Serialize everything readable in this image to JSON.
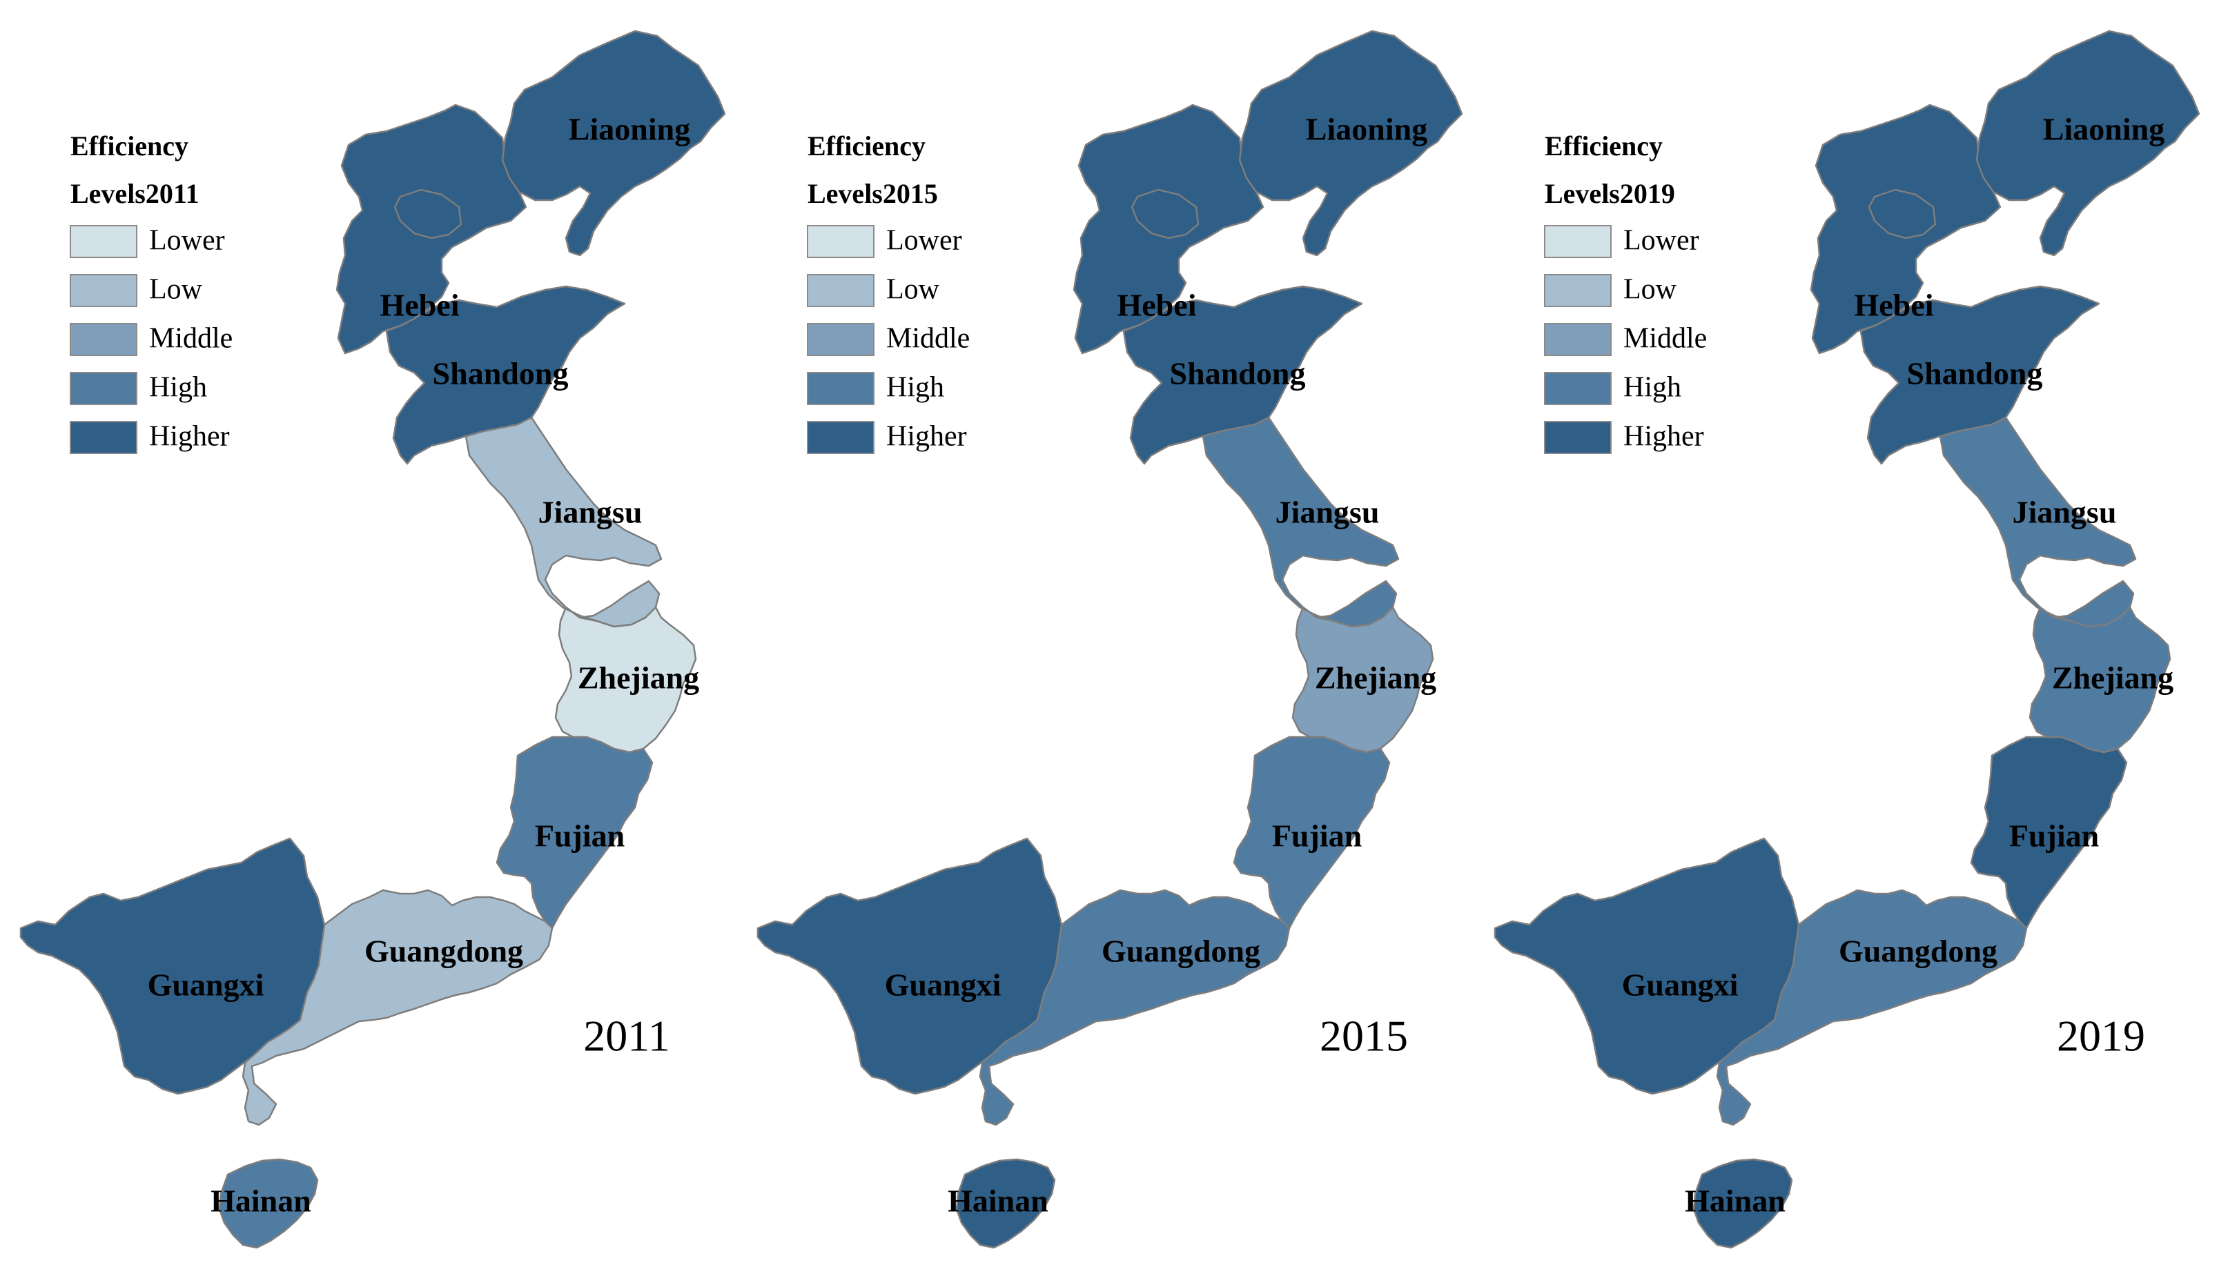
{
  "colors": {
    "Lower": "#d3e2e8",
    "Low": "#a6bed0",
    "Middle": "#809fbb",
    "High": "#517ca2",
    "Higher": "#2f5e87"
  },
  "legend": {
    "levels": [
      "Lower",
      "Low",
      "Middle",
      "High",
      "Higher"
    ]
  },
  "panels": [
    {
      "year": "2011",
      "legend_title_line1": "Efficiency",
      "legend_title_line2": "Levels2011",
      "provinces": {
        "Liaoning": "Higher",
        "Hebei": "Higher",
        "Shandong": "Higher",
        "Jiangsu": "Low",
        "Zhejiang": "Lower",
        "Fujian": "High",
        "Guangdong": "Low",
        "Guangxi": "Higher",
        "Hainan": "High"
      }
    },
    {
      "year": "2015",
      "legend_title_line1": "Efficiency",
      "legend_title_line2": "Levels2015",
      "provinces": {
        "Liaoning": "Higher",
        "Hebei": "Higher",
        "Shandong": "Higher",
        "Jiangsu": "High",
        "Zhejiang": "Middle",
        "Fujian": "High",
        "Guangdong": "High",
        "Guangxi": "Higher",
        "Hainan": "Higher"
      }
    },
    {
      "year": "2019",
      "legend_title_line1": "Efficiency",
      "legend_title_line2": "Levels2019",
      "provinces": {
        "Liaoning": "Higher",
        "Hebei": "Higher",
        "Shandong": "Higher",
        "Jiangsu": "High",
        "Zhejiang": "High",
        "Fujian": "Higher",
        "Guangdong": "High",
        "Guangxi": "Higher",
        "Hainan": "Higher"
      }
    }
  ]
}
